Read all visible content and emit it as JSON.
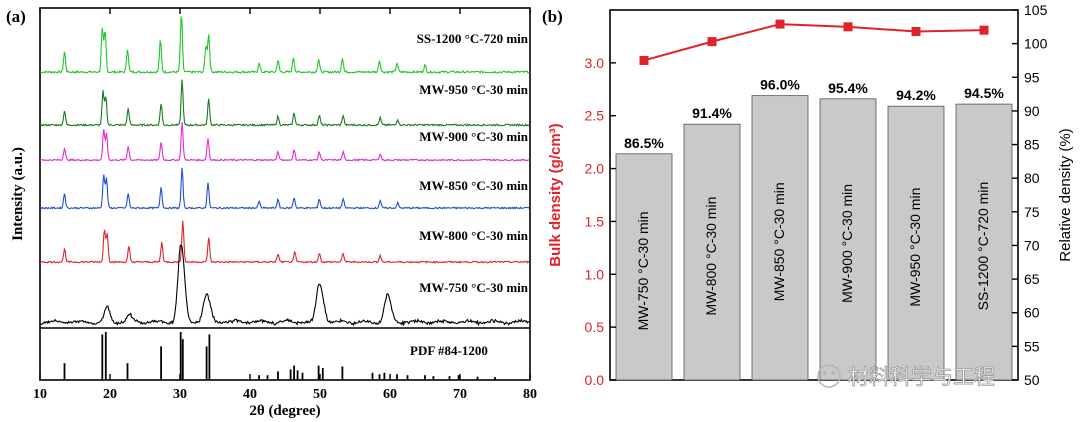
{
  "chart_data": [
    {
      "panel": "(a)",
      "type": "line",
      "title": "",
      "xlabel": "2θ (degree)",
      "ylabel": "Intensity (a.u.)",
      "xlim": [
        10,
        80
      ],
      "xticks": [
        10,
        20,
        30,
        40,
        50,
        60,
        70,
        80
      ],
      "series": [
        {
          "name": "SS-1200 °C-720 min",
          "color": "#22c62a",
          "peaks": [
            [
              13.5,
              0.35
            ],
            [
              18.9,
              0.75
            ],
            [
              19.3,
              0.7
            ],
            [
              22.5,
              0.4
            ],
            [
              27.2,
              0.55
            ],
            [
              30.2,
              1.0
            ],
            [
              33.7,
              0.45
            ],
            [
              34.1,
              0.65
            ],
            [
              41.3,
              0.15
            ],
            [
              44.0,
              0.2
            ],
            [
              46.2,
              0.25
            ],
            [
              49.8,
              0.22
            ],
            [
              53.2,
              0.25
            ],
            [
              58.5,
              0.2
            ],
            [
              61.0,
              0.15
            ],
            [
              65.0,
              0.12
            ]
          ]
        },
        {
          "name": "MW-950 °C-30 min",
          "color": "#1a7a1f",
          "peaks": [
            [
              13.5,
              0.3
            ],
            [
              19.0,
              0.7
            ],
            [
              19.4,
              0.6
            ],
            [
              22.6,
              0.35
            ],
            [
              27.3,
              0.45
            ],
            [
              30.3,
              0.95
            ],
            [
              34.1,
              0.55
            ],
            [
              44.0,
              0.18
            ],
            [
              46.3,
              0.25
            ],
            [
              49.9,
              0.2
            ],
            [
              53.3,
              0.2
            ],
            [
              58.6,
              0.15
            ],
            [
              61.1,
              0.12
            ]
          ]
        },
        {
          "name": "MW-900 °C-30 min",
          "color": "#e32ad6",
          "peaks": [
            [
              13.5,
              0.3
            ],
            [
              19.1,
              0.75
            ],
            [
              19.5,
              0.65
            ],
            [
              22.6,
              0.35
            ],
            [
              27.3,
              0.45
            ],
            [
              30.3,
              0.95
            ],
            [
              34.0,
              0.55
            ],
            [
              44.0,
              0.2
            ],
            [
              46.3,
              0.25
            ],
            [
              49.9,
              0.2
            ],
            [
              53.3,
              0.2
            ],
            [
              58.6,
              0.15
            ]
          ]
        },
        {
          "name": "MW-850 °C-30 min",
          "color": "#1f4fd1",
          "peaks": [
            [
              13.5,
              0.35
            ],
            [
              19.1,
              0.8
            ],
            [
              19.5,
              0.7
            ],
            [
              22.6,
              0.35
            ],
            [
              27.3,
              0.5
            ],
            [
              30.3,
              0.95
            ],
            [
              34.0,
              0.6
            ],
            [
              41.3,
              0.15
            ],
            [
              44.0,
              0.2
            ],
            [
              46.3,
              0.25
            ],
            [
              49.9,
              0.22
            ],
            [
              53.3,
              0.22
            ],
            [
              58.6,
              0.18
            ],
            [
              61.1,
              0.12
            ]
          ]
        },
        {
          "name": "MW-800 °C-30 min",
          "color": "#e0232a",
          "peaks": [
            [
              13.5,
              0.3
            ],
            [
              19.2,
              0.75
            ],
            [
              19.6,
              0.65
            ],
            [
              22.7,
              0.35
            ],
            [
              27.4,
              0.45
            ],
            [
              30.4,
              0.95
            ],
            [
              34.1,
              0.55
            ],
            [
              44.0,
              0.18
            ],
            [
              46.4,
              0.22
            ],
            [
              49.9,
              0.2
            ],
            [
              53.3,
              0.2
            ],
            [
              58.6,
              0.15
            ]
          ]
        },
        {
          "name": "MW-750 °C-30 min",
          "color": "#000000",
          "peaks": [
            [
              19.6,
              0.25
            ],
            [
              22.8,
              0.12
            ],
            [
              30.0,
              1.0
            ],
            [
              30.5,
              0.6
            ],
            [
              33.6,
              0.35
            ],
            [
              34.2,
              0.25
            ],
            [
              49.8,
              0.55
            ],
            [
              50.4,
              0.3
            ],
            [
              59.5,
              0.35
            ],
            [
              60.0,
              0.2
            ]
          ]
        }
      ],
      "reference": {
        "name": "PDF #84-1200",
        "sticks": [
          [
            13.5,
            0.35
          ],
          [
            18.9,
            0.95
          ],
          [
            19.4,
            1.0
          ],
          [
            22.5,
            0.35
          ],
          [
            27.3,
            0.7
          ],
          [
            30.1,
            1.0
          ],
          [
            30.4,
            0.85
          ],
          [
            33.8,
            0.7
          ],
          [
            34.2,
            0.95
          ],
          [
            41.3,
            0.1
          ],
          [
            42.5,
            0.1
          ],
          [
            44.0,
            0.18
          ],
          [
            45.8,
            0.22
          ],
          [
            46.3,
            0.3
          ],
          [
            46.8,
            0.2
          ],
          [
            47.5,
            0.15
          ],
          [
            49.8,
            0.3
          ],
          [
            50.4,
            0.25
          ],
          [
            53.2,
            0.28
          ],
          [
            57.5,
            0.15
          ],
          [
            58.5,
            0.12
          ],
          [
            59.2,
            0.15
          ],
          [
            61.0,
            0.12
          ],
          [
            62.5,
            0.1
          ],
          [
            65.0,
            0.1
          ],
          [
            66.2,
            0.08
          ],
          [
            68.5,
            0.08
          ],
          [
            69.8,
            0.1
          ],
          [
            72.5,
            0.07
          ],
          [
            75.0,
            0.06
          ]
        ]
      }
    },
    {
      "panel": "(b)",
      "type": "bar",
      "categories": [
        "MW-750 °C-30 min",
        "MW-800 °C-30 min",
        "MW-850 °C-30 min",
        "MW-900 °C-30 min",
        "MW-950 °C-30 min",
        "SS-1200 °C-720 min"
      ],
      "values": [
        2.14,
        2.42,
        2.69,
        2.66,
        2.59,
        2.61
      ],
      "value_labels": [
        "86.5%",
        "91.4%",
        "96.0%",
        "95.4%",
        "94.2%",
        "94.5%"
      ],
      "ylabel": "Bulk density (g/cm³)",
      "ylim": [
        0.0,
        3.5
      ],
      "yticks": [
        "0.0",
        "0.5",
        "1.0",
        "1.5",
        "2.0",
        "2.5",
        "3.0"
      ],
      "bar_color": "#c9c9c9",
      "axis_color": "#e0232a",
      "secondary": {
        "type": "line",
        "name": "Relative density",
        "ylabel": "Relative density (%)",
        "ylim": [
          50,
          105
        ],
        "yticks": [
          "50",
          "55",
          "60",
          "65",
          "70",
          "75",
          "80",
          "85",
          "90",
          "95",
          "100",
          "105"
        ],
        "values": [
          97.5,
          100.3,
          102.9,
          102.5,
          101.8,
          102.0
        ],
        "color": "#e0232a"
      }
    }
  ],
  "watermark": "材料科学与工程"
}
